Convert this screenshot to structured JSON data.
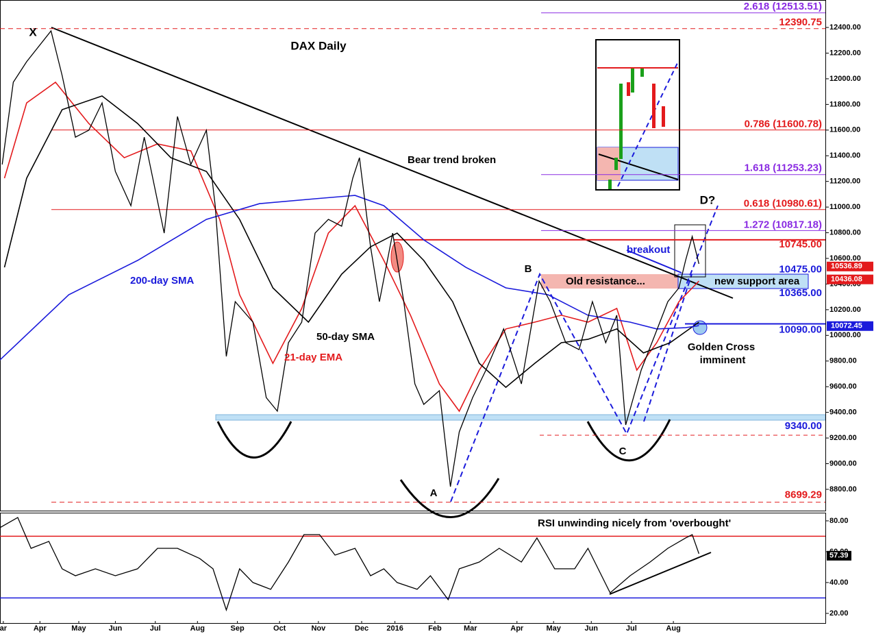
{
  "chart_data": [
    {
      "type": "line",
      "title": "DAX Daily",
      "xlim": [
        0,
        372
      ],
      "xticks": [
        {
          "value": 1.5,
          "label": "ar"
        },
        {
          "value": 18,
          "label": "Apr"
        },
        {
          "value": 35.5,
          "label": "May"
        },
        {
          "value": 52,
          "label": "Jun"
        },
        {
          "value": 70,
          "label": "Jul"
        },
        {
          "value": 89,
          "label": "Aug"
        },
        {
          "value": 107,
          "label": "Sep"
        },
        {
          "value": 126,
          "label": "Oct"
        },
        {
          "value": 143.5,
          "label": "Nov"
        },
        {
          "value": 163,
          "label": "Dec"
        },
        {
          "value": 178,
          "label": "2016"
        },
        {
          "value": 196,
          "label": "Feb"
        },
        {
          "value": 212,
          "label": "Mar"
        },
        {
          "value": 233,
          "label": "Apr"
        },
        {
          "value": 249.5,
          "label": "May"
        },
        {
          "value": 266.5,
          "label": "Jun"
        },
        {
          "value": 284.6,
          "label": "Jul"
        },
        {
          "value": 303.5,
          "label": "Aug"
        }
      ],
      "ylim": [
        8634,
        12614
      ],
      "yticks": [
        {
          "value": 8800,
          "label": "8800.00"
        },
        {
          "value": 9000,
          "label": "9000.00"
        },
        {
          "value": 9200,
          "label": "9200.00"
        },
        {
          "value": 9400,
          "label": "9400.00"
        },
        {
          "value": 9600,
          "label": "9600.00"
        },
        {
          "value": 9800,
          "label": "9800.00"
        },
        {
          "value": 10000,
          "label": "10000.00"
        },
        {
          "value": 10200,
          "label": "10200.00"
        },
        {
          "value": 10400,
          "label": "10400.00"
        },
        {
          "value": 10600,
          "label": "10600.00"
        },
        {
          "value": 10800,
          "label": "10800.00"
        },
        {
          "value": 11000,
          "label": "11000.00"
        },
        {
          "value": 11200,
          "label": "11200.00"
        },
        {
          "value": 11400,
          "label": "11400.00"
        },
        {
          "value": 11600,
          "label": "11600.00"
        },
        {
          "value": 11800,
          "label": "11800.00"
        },
        {
          "value": 12000,
          "label": "12000.00"
        },
        {
          "value": 12200,
          "label": "12200.00"
        },
        {
          "value": 12400,
          "label": "12400.00"
        }
      ],
      "series": [
        {
          "color": "#000000",
          "x": [
            1,
            6,
            12,
            23,
            28,
            34,
            40,
            46,
            52,
            59,
            65,
            74,
            80,
            86,
            93,
            97,
            102,
            106,
            114,
            120,
            125,
            130,
            136,
            142,
            148,
            154,
            159,
            162,
            167,
            171,
            177,
            182,
            187,
            191,
            198,
            203,
            207,
            213,
            219,
            227,
            235,
            243,
            248,
            255,
            261,
            267,
            273,
            278,
            282,
            289,
            295,
            301,
            306,
            309,
            312,
            315
          ],
          "values": [
            11332,
            11973,
            12133,
            12373,
            12026,
            11545,
            11599,
            11812,
            11278,
            11011,
            11545,
            10797,
            11706,
            11332,
            11599,
            11011,
            9836,
            10263,
            10103,
            9515,
            9409,
            9943,
            10103,
            10797,
            10904,
            10851,
            11225,
            11385,
            10690,
            10263,
            10797,
            10263,
            9622,
            9462,
            9569,
            8821,
            9248,
            9515,
            9729,
            10050,
            9622,
            10423,
            10263,
            9943,
            9889,
            10263,
            9943,
            10157,
            9302,
            9729,
            9996,
            10263,
            10370,
            10584,
            10771,
            10557
          ]
        },
        {
          "name": "200-day SMA",
          "color": "#1a1adb",
          "x": [
            0,
            31,
            62,
            93,
            117,
            142,
            160,
            173,
            191,
            210,
            228,
            247,
            265,
            284,
            296,
            309,
            315
          ],
          "values": [
            9809,
            10317,
            10584,
            10904,
            11027,
            11065,
            11091,
            11011,
            10744,
            10530,
            10370,
            10317,
            10157,
            10103,
            10050,
            10060,
            10076
          ]
        },
        {
          "name": "50-day SMA",
          "color": "#000000",
          "x": [
            2,
            12,
            28,
            46,
            62,
            77,
            93,
            108,
            123,
            139,
            154,
            167,
            179,
            191,
            204,
            216,
            228,
            241,
            253,
            265,
            278,
            290,
            302,
            315
          ],
          "values": [
            10530,
            11225,
            11759,
            11866,
            11652,
            11385,
            11278,
            10904,
            10370,
            10103,
            10477,
            10690,
            10797,
            10584,
            10263,
            9782,
            9595,
            9782,
            9943,
            9969,
            10050,
            9863,
            9943,
            10103
          ]
        },
        {
          "name": "21-day EMA",
          "color": "#e31a1c",
          "x": [
            2,
            12,
            25,
            40,
            56,
            71,
            86,
            99,
            108,
            123,
            136,
            148,
            160,
            173,
            185,
            198,
            207,
            216,
            228,
            241,
            253,
            265,
            278,
            287,
            296,
            306,
            315
          ],
          "values": [
            11225,
            11812,
            11973,
            11652,
            11385,
            11492,
            11438,
            10904,
            10317,
            9782,
            10210,
            10797,
            11011,
            10584,
            10157,
            9622,
            9409,
            9729,
            10050,
            10103,
            10157,
            10103,
            10210,
            9729,
            9943,
            10263,
            10423
          ]
        }
      ],
      "levels": [
        {
          "value": 12513.51,
          "label": "2.618 (12513.51)",
          "color": "#8a2be2"
        },
        {
          "value": 12390.75,
          "label": "12390.75",
          "color": "#e31a1c"
        },
        {
          "value": 11600.78,
          "label": "0.786 (11600.78)",
          "color": "#e31a1c"
        },
        {
          "value": 11253.23,
          "label": "1.618 (11253.23)",
          "color": "#8a2be2"
        },
        {
          "value": 10980.61,
          "label": "0.618 (10980.61)",
          "color": "#e31a1c"
        },
        {
          "value": 10817.18,
          "label": "1.272 (10817.18)",
          "color": "#8a2be2"
        },
        {
          "value": 10745,
          "label": "10745.00",
          "color": "#e31a1c"
        },
        {
          "value": 10475,
          "label": "10475.00",
          "color": "#1a1adb"
        },
        {
          "value": 10365,
          "label": "10365.00",
          "color": "#1a1adb"
        },
        {
          "value": 10090,
          "label": "10090.00",
          "color": "#1a1adb"
        },
        {
          "value": 9340,
          "label": "9340.00",
          "color": "#1a1adb"
        },
        {
          "value": 8699.29,
          "label": "8699.29",
          "color": "#e31a1c"
        }
      ],
      "price_tags": [
        {
          "value": 10536.89,
          "color": "#e31a1c"
        },
        {
          "value": 10436.08,
          "color": "#e31a1c"
        },
        {
          "value": 10072.45,
          "color": "#1a1adb"
        }
      ],
      "annotations": [
        "X",
        "A",
        "B",
        "C",
        "D?",
        "Bear trend broken",
        "breakout",
        "Old resistance...",
        "new support area",
        "Golden Cross",
        "imminent"
      ]
    },
    {
      "type": "line",
      "xlim": [
        0,
        372
      ],
      "ylim": [
        13.3,
        85.3
      ],
      "yticks": [
        {
          "value": 20,
          "label": "20.00"
        },
        {
          "value": 40,
          "label": "40.00"
        },
        {
          "value": 60,
          "label": "60.00"
        },
        {
          "value": 80,
          "label": "80.00"
        }
      ],
      "overbought": 70,
      "oversold": 30,
      "series": [
        {
          "color": "#000000",
          "x": [
            0,
            8,
            14,
            22,
            28,
            34,
            43,
            52,
            62,
            71,
            80,
            90,
            96,
            102,
            108,
            114,
            122,
            130,
            137,
            144,
            151,
            160,
            167,
            173,
            179,
            188,
            194,
            202,
            207,
            216,
            225,
            235,
            242,
            250,
            259,
            265,
            275,
            284,
            293,
            301,
            309,
            312,
            315
          ],
          "values": [
            75.6,
            82.2,
            62.2,
            66.7,
            48.9,
            44.4,
            48.9,
            44.4,
            48.9,
            62.2,
            62.2,
            55.6,
            48.9,
            22.2,
            48.9,
            40,
            35.6,
            53.3,
            71.1,
            71.1,
            57.8,
            62.2,
            44.4,
            48.9,
            40,
            35.6,
            44.4,
            28.9,
            48.9,
            53.3,
            62.2,
            53.3,
            68.9,
            48.9,
            48.9,
            62.2,
            33.3,
            44.4,
            53.3,
            62.2,
            68.9,
            71.1,
            58.7
          ]
        }
      ],
      "last_value": 57.39,
      "annotation": "RSI unwinding nicely from 'overbought'"
    }
  ]
}
